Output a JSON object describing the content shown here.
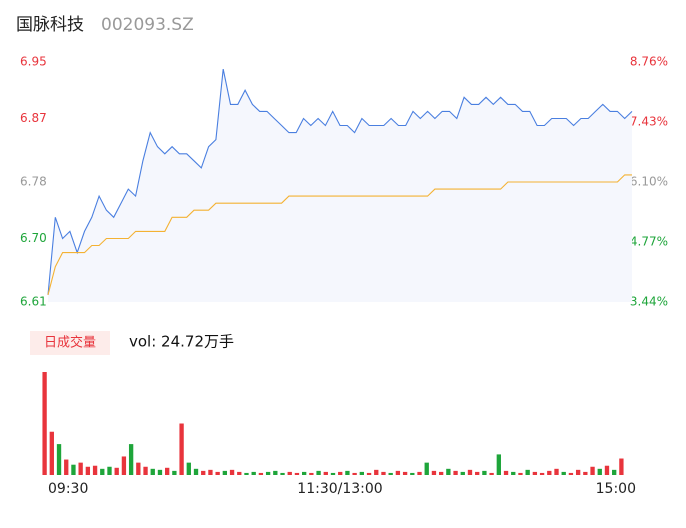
{
  "header": {
    "name": "国脉科技",
    "code": "002093.SZ"
  },
  "chart_data": [
    {
      "type": "line",
      "x": [
        0,
        3,
        6,
        9,
        12,
        15,
        18,
        21,
        24,
        27,
        30,
        33,
        36,
        39,
        42,
        45,
        48,
        51,
        54,
        57,
        60,
        63,
        66,
        69,
        72,
        75,
        78,
        81,
        84,
        87,
        90,
        93,
        96,
        99,
        102,
        105,
        108,
        111,
        114,
        117,
        120,
        123,
        126,
        129,
        132,
        135,
        138,
        141,
        144,
        147,
        150,
        153,
        156,
        159,
        162,
        165,
        168,
        171,
        174,
        177,
        180,
        183,
        186,
        189,
        192,
        195,
        198,
        201,
        204,
        207,
        210,
        213,
        216,
        219,
        222,
        225,
        228,
        231,
        234,
        237,
        240
      ],
      "xlim": [
        0,
        240
      ],
      "xticks": [
        {
          "value": 0,
          "label": "09:30"
        },
        {
          "value": 120,
          "label": "11:30/13:00"
        },
        {
          "value": 240,
          "label": "15:00"
        }
      ],
      "ylim": [
        6.61,
        6.95
      ],
      "yticks": [
        6.61,
        {
          "value": 6.7,
          "label": "6.70"
        },
        6.78,
        6.87,
        6.95
      ],
      "y2lim": [
        3.44,
        8.76
      ],
      "y2ticks": [
        {
          "value": 3.44,
          "label": "3.44%"
        },
        {
          "value": 4.77,
          "label": "4.77%"
        },
        {
          "value": 6.1,
          "label": "6.10%"
        },
        {
          "value": 7.43,
          "label": "7.43%"
        },
        {
          "value": 8.76,
          "label": "8.76%"
        }
      ],
      "series": [
        {
          "name": "price",
          "color": "#4a7fe0",
          "values": [
            6.62,
            6.73,
            6.7,
            6.71,
            6.68,
            6.71,
            6.73,
            6.76,
            6.74,
            6.73,
            6.75,
            6.77,
            6.76,
            6.81,
            6.85,
            6.83,
            6.82,
            6.83,
            6.82,
            6.82,
            6.81,
            6.8,
            6.83,
            6.84,
            6.94,
            6.89,
            6.89,
            6.91,
            6.89,
            6.88,
            6.88,
            6.87,
            6.86,
            6.85,
            6.85,
            6.87,
            6.86,
            6.87,
            6.86,
            6.88,
            6.86,
            6.86,
            6.85,
            6.87,
            6.86,
            6.86,
            6.86,
            6.87,
            6.86,
            6.86,
            6.88,
            6.87,
            6.88,
            6.87,
            6.88,
            6.88,
            6.87,
            6.9,
            6.89,
            6.89,
            6.9,
            6.89,
            6.9,
            6.89,
            6.89,
            6.88,
            6.88,
            6.86,
            6.86,
            6.87,
            6.87,
            6.87,
            6.86,
            6.87,
            6.87,
            6.88,
            6.89,
            6.88,
            6.88,
            6.87,
            6.88
          ]
        },
        {
          "name": "average",
          "color": "#f4b233",
          "values": [
            6.62,
            6.66,
            6.68,
            6.68,
            6.68,
            6.68,
            6.69,
            6.69,
            6.7,
            6.7,
            6.7,
            6.7,
            6.71,
            6.71,
            6.71,
            6.71,
            6.71,
            6.73,
            6.73,
            6.73,
            6.74,
            6.74,
            6.74,
            6.75,
            6.75,
            6.75,
            6.75,
            6.75,
            6.75,
            6.75,
            6.75,
            6.75,
            6.75,
            6.76,
            6.76,
            6.76,
            6.76,
            6.76,
            6.76,
            6.76,
            6.76,
            6.76,
            6.76,
            6.76,
            6.76,
            6.76,
            6.76,
            6.76,
            6.76,
            6.76,
            6.76,
            6.76,
            6.76,
            6.77,
            6.77,
            6.77,
            6.77,
            6.77,
            6.77,
            6.77,
            6.77,
            6.77,
            6.77,
            6.78,
            6.78,
            6.78,
            6.78,
            6.78,
            6.78,
            6.78,
            6.78,
            6.78,
            6.78,
            6.78,
            6.78,
            6.78,
            6.78,
            6.78,
            6.78,
            6.79,
            6.79
          ]
        }
      ]
    },
    {
      "type": "bar",
      "label": "日成交量",
      "summary": "vol: 24.72万手",
      "up_color": "#e8343c",
      "down_color": "#1ea53a",
      "values": [
        100,
        42,
        30,
        15,
        10,
        12,
        8,
        9,
        6,
        8,
        7,
        18,
        30,
        12,
        8,
        6,
        5,
        7,
        4,
        50,
        12,
        6,
        4,
        5,
        3,
        4,
        5,
        3,
        2,
        3,
        2,
        3,
        4,
        2,
        3,
        2,
        3,
        2,
        4,
        3,
        2,
        3,
        4,
        2,
        3,
        2,
        5,
        3,
        2,
        4,
        3,
        2,
        3,
        12,
        4,
        3,
        6,
        4,
        3,
        5,
        3,
        4,
        2,
        20,
        4,
        3,
        2,
        5,
        3,
        2,
        4,
        6,
        3,
        2,
        5,
        3,
        8,
        6,
        9,
        5,
        16
      ]
    }
  ]
}
